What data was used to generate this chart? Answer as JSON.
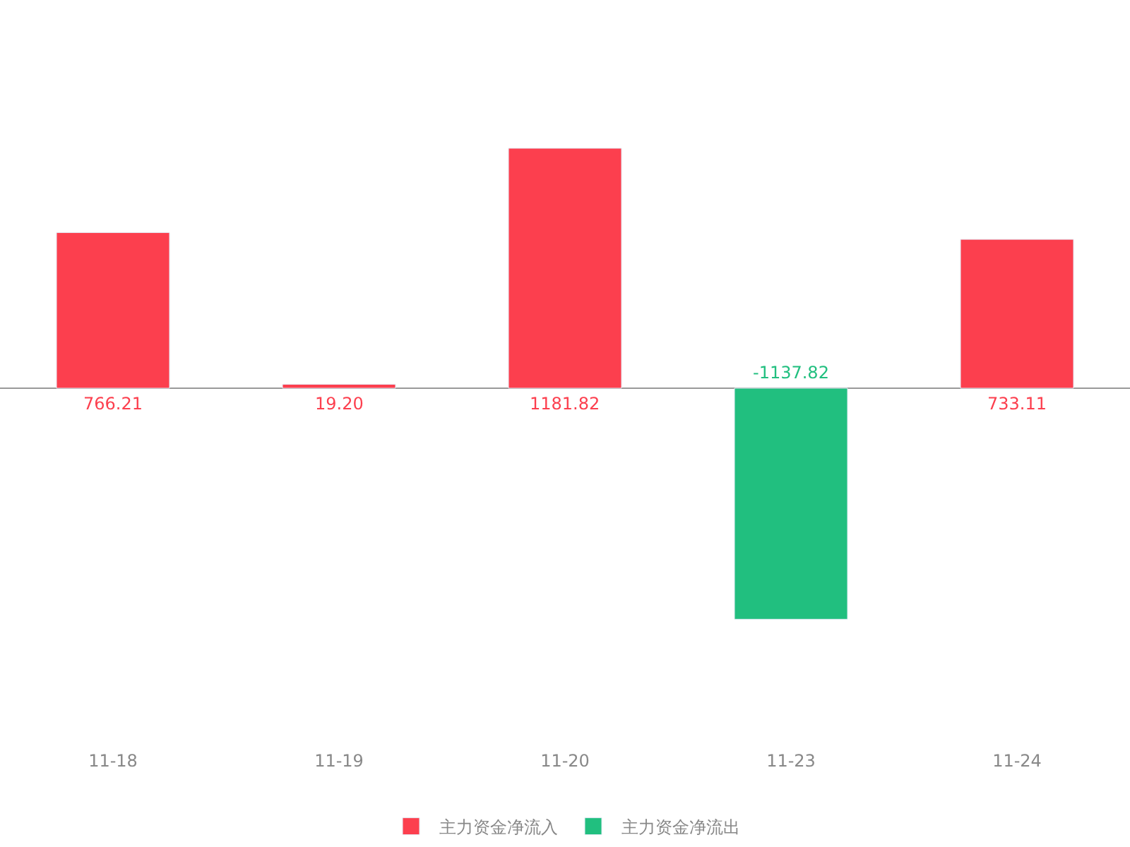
{
  "chart_data": {
    "type": "bar",
    "categories": [
      "11-18",
      "11-19",
      "11-20",
      "11-23",
      "11-24"
    ],
    "series": [
      {
        "name": "主力资金净流入",
        "color": "#fc3f4e",
        "values": [
          766.21,
          19.2,
          1181.82,
          null,
          733.11
        ],
        "value_labels": [
          "766.21",
          "19.20",
          "1181.82",
          null,
          "733.11"
        ]
      },
      {
        "name": "主力资金净流出",
        "color": "#21bf7f",
        "values": [
          null,
          null,
          null,
          -1137.82,
          null
        ],
        "value_labels": [
          null,
          null,
          null,
          "-1137.82",
          null
        ]
      }
    ],
    "legend": "bottom"
  }
}
